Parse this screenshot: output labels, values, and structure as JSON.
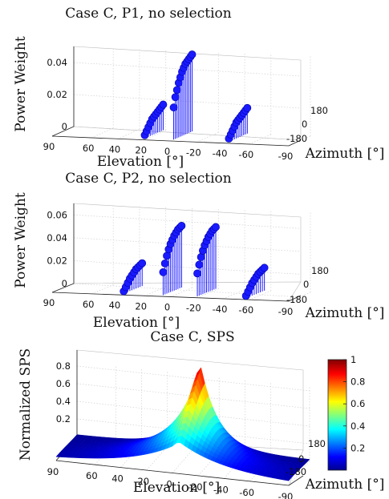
{
  "chart_data": [
    {
      "type": "scatter",
      "title": "Case C, P1, no selection",
      "xlabel": "Elevation [°]",
      "ylabel": "Power Weight",
      "zlabel": "Azimuth [°]",
      "x_ticks": [
        "90",
        "60",
        "40",
        "20",
        "0",
        "-20",
        "-40",
        "-60",
        "-90"
      ],
      "y_ticks": [
        "0",
        "0.02",
        "0.04"
      ],
      "azimuth_ticks": [
        "180",
        "0",
        "-180"
      ],
      "ylim": [
        0,
        0.05
      ],
      "marker_color": "#1a1aff",
      "series": [
        {
          "x": 22,
          "values": [
            0.002,
            0.004,
            0.006,
            0.008,
            0.01,
            0.011,
            0.012,
            0.013,
            0.014,
            0.015,
            0.016
          ]
        },
        {
          "x": 0,
          "values": [
            0.02,
            0.026,
            0.03,
            0.034,
            0.037,
            0.04,
            0.042,
            0.044,
            0.045,
            0.046,
            0.047,
            0.048
          ]
        },
        {
          "x": -42,
          "values": [
            0.002,
            0.004,
            0.006,
            0.008,
            0.01,
            0.011,
            0.012,
            0.013,
            0.014,
            0.015,
            0.016
          ]
        }
      ]
    },
    {
      "type": "scatter",
      "title": "Case C, P2, no selection",
      "xlabel": "Elevation [°]",
      "ylabel": "Power Weight",
      "zlabel": "Azimuth [°]",
      "x_ticks": [
        "90",
        "60",
        "40",
        "20",
        "0",
        "-20",
        "-40",
        "-60",
        "-90"
      ],
      "y_ticks": [
        "0",
        "0.02",
        "0.04",
        "0.06"
      ],
      "azimuth_ticks": [
        "180",
        "0",
        "-180"
      ],
      "ylim": [
        0,
        0.07
      ],
      "marker_color": "#1a1aff",
      "series": [
        {
          "x": 38,
          "values": [
            0.002,
            0.005,
            0.008,
            0.011,
            0.013,
            0.015,
            0.017,
            0.018,
            0.019,
            0.02
          ]
        },
        {
          "x": 8,
          "values": [
            0.02,
            0.027,
            0.033,
            0.038,
            0.042,
            0.045,
            0.048,
            0.05,
            0.052,
            0.053,
            0.054
          ]
        },
        {
          "x": -18,
          "values": [
            0.02,
            0.027,
            0.033,
            0.038,
            0.042,
            0.045,
            0.048,
            0.05,
            0.052,
            0.053,
            0.054
          ]
        },
        {
          "x": -55,
          "values": [
            0.002,
            0.005,
            0.008,
            0.011,
            0.013,
            0.015,
            0.017,
            0.018,
            0.019,
            0.02
          ]
        }
      ]
    },
    {
      "type": "heatmap",
      "title": "Case C, SPS",
      "xlabel": "Elevation [°]",
      "ylabel": "Normalized SPS",
      "zlabel": "Azimuth [°]",
      "x_ticks": [
        "90",
        "60",
        "40",
        "20",
        "0",
        "-20",
        "-40",
        "-60",
        "-90"
      ],
      "y_ticks": [
        "0.2",
        "0.4",
        "0.6",
        "0.8"
      ],
      "azimuth_ticks": [
        "180",
        "0",
        "-180"
      ],
      "ylim": [
        0,
        1
      ],
      "peak_elevation": -5,
      "peak_value": 1,
      "colorbar_ticks": [
        "1",
        "0.8",
        "0.6",
        "0.4",
        "0.2"
      ],
      "colormap": "jet"
    }
  ]
}
